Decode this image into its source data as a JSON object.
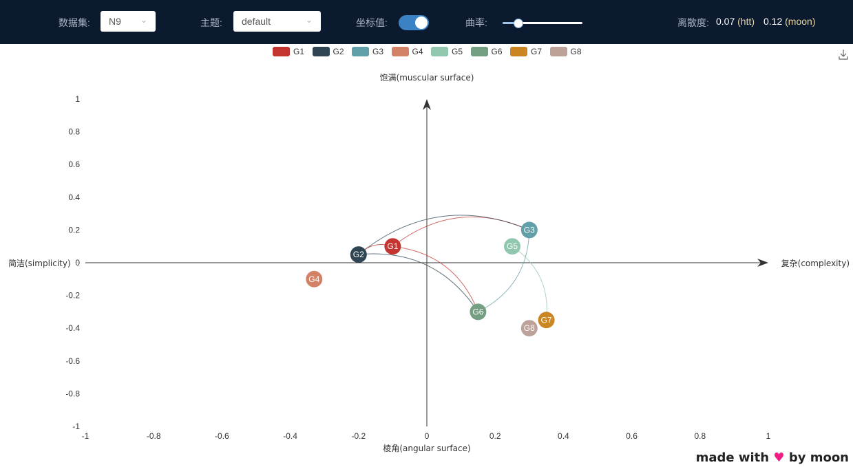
{
  "toolbar": {
    "dataset_label": "数据集:",
    "dataset_value": "N9",
    "theme_label": "主题:",
    "theme_value": "default",
    "coord_label": "坐标值:",
    "coord_toggle_on": true,
    "curvature_label": "曲率:",
    "curvature_value": 0.15,
    "dispersion_label": "离散度:",
    "dispersion_htt_value": "0.07",
    "dispersion_htt_tag": "(htt)",
    "dispersion_moon_value": "0.12",
    "dispersion_moon_tag": "(moon)"
  },
  "footer": {
    "text_before": "made with",
    "text_after": "by moon"
  },
  "chart_data": {
    "type": "scatter",
    "xlim": [
      -1,
      1
    ],
    "ylim": [
      -1,
      1
    ],
    "x_ticks": [
      "-1",
      "-0.8",
      "-0.6",
      "-0.4",
      "-0.2",
      "0",
      "0.2",
      "0.4",
      "0.6",
      "0.8",
      "1"
    ],
    "y_ticks": [
      "1",
      "0.8",
      "0.6",
      "0.4",
      "0.2",
      "0",
      "-0.2",
      "-0.4",
      "-0.6",
      "-0.8",
      "-1"
    ],
    "axis_labels": {
      "top": "饱满(muscular surface)",
      "bottom": "棱角(angular surface)",
      "left": "简洁(simplicity)",
      "right": "复杂(complexity)"
    },
    "legend_position": "top-center",
    "series": [
      {
        "name": "G1",
        "color": "#c23531",
        "x": -0.1,
        "y": 0.1
      },
      {
        "name": "G2",
        "color": "#2f4554",
        "x": -0.2,
        "y": 0.05
      },
      {
        "name": "G3",
        "color": "#61a0a8",
        "x": 0.3,
        "y": 0.2
      },
      {
        "name": "G4",
        "color": "#d48265",
        "x": -0.33,
        "y": -0.1
      },
      {
        "name": "G5",
        "color": "#91c7ae",
        "x": 0.25,
        "y": 0.1
      },
      {
        "name": "G6",
        "color": "#749f83",
        "x": 0.15,
        "y": -0.3
      },
      {
        "name": "G7",
        "color": "#ca8622",
        "x": 0.35,
        "y": -0.35
      },
      {
        "name": "G8",
        "color": "#bda29a",
        "x": 0.3,
        "y": -0.4
      }
    ],
    "links": [
      {
        "from": "G1",
        "to": "G3",
        "color": "#c23531"
      },
      {
        "from": "G1",
        "to": "G6",
        "color": "#c23531"
      },
      {
        "from": "G2",
        "to": "G3",
        "color": "#2f4554"
      },
      {
        "from": "G2",
        "to": "G6",
        "color": "#2f4554"
      },
      {
        "from": "G2",
        "to": "G1",
        "color": "#c23531"
      },
      {
        "from": "G3",
        "to": "G6",
        "color": "#61a0a8"
      },
      {
        "from": "G5",
        "to": "G7",
        "color": "#91c7ae"
      }
    ]
  }
}
